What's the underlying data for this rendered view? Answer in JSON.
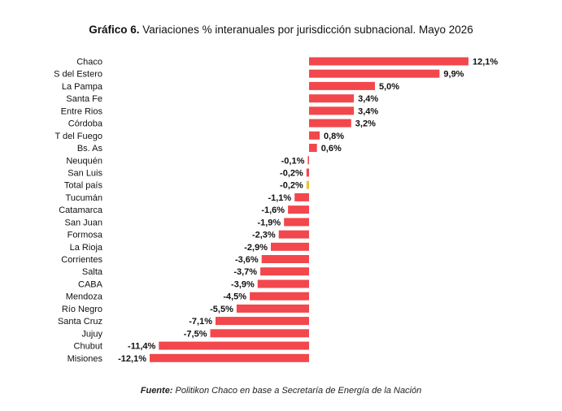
{
  "title_prefix": "Gráfico 6.",
  "title_text": "Variaciones % interanuales por jurisdicción subnacional. Mayo 2026",
  "source_label": "Fuente:",
  "source_text": "Politikon Chaco en base a Secretaría de Energía de la Nación",
  "colors": {
    "bar": "#f2474c",
    "highlight": "#e6c43a"
  },
  "chart_data": {
    "type": "bar",
    "orientation": "horizontal",
    "title": "Gráfico 6. Variaciones % interanuales por jurisdicción subnacional. Mayo 2026",
    "xlabel": "",
    "ylabel": "",
    "grid": false,
    "legend": "none",
    "xlim": [
      -12.1,
      12.1
    ],
    "highlight_category": "Total país",
    "categories": [
      "Chaco",
      "S del Estero",
      "La Pampa",
      "Santa Fe",
      "Entre Rios",
      "Córdoba",
      "T del Fuego",
      "Bs. As",
      "Neuquén",
      "San Luis",
      "Total país",
      "Tucumán",
      "Catamarca",
      "San Juan",
      "Formosa",
      "La Rioja",
      "Corrientes",
      "Salta",
      "CABA",
      "Mendoza",
      "Río Negro",
      "Santa Cruz",
      "Jujuy",
      "Chubut",
      "Misiones"
    ],
    "values": [
      12.1,
      9.9,
      5.0,
      3.4,
      3.4,
      3.2,
      0.8,
      0.6,
      -0.1,
      -0.2,
      -0.2,
      -1.1,
      -1.6,
      -1.9,
      -2.3,
      -2.9,
      -3.6,
      -3.7,
      -3.9,
      -4.5,
      -5.5,
      -7.1,
      -7.5,
      -11.4,
      -12.1
    ],
    "data_labels": [
      "12,1%",
      "9,9%",
      "5,0%",
      "3,4%",
      "3,4%",
      "3,2%",
      "0,8%",
      "0,6%",
      "-0,1%",
      "-0,2%",
      "-0,2%",
      "-1,1%",
      "-1,6%",
      "-1,9%",
      "-2,3%",
      "-2,9%",
      "-3,6%",
      "-3,7%",
      "-3,9%",
      "-4,5%",
      "-5,5%",
      "-7,1%",
      "-7,5%",
      "-11,4%",
      "-12,1%"
    ]
  }
}
